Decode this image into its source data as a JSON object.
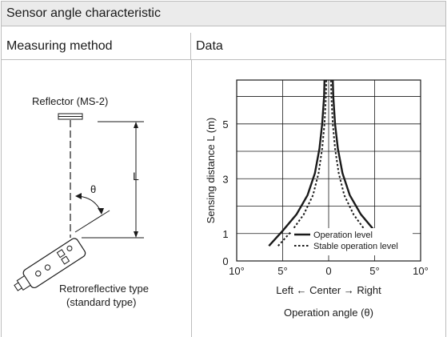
{
  "title": "Sensor angle characteristic",
  "columns": {
    "method": "Measuring method",
    "data": "Data"
  },
  "diagram": {
    "reflector_label": "Reflector (MS-2)",
    "distance_label": "L",
    "angle_label": "θ",
    "sensor_label_line1": "Retroreflective type",
    "sensor_label_line2": "(standard type)"
  },
  "chart_data": {
    "type": "line",
    "ylabel": "Sensing distance L (m)",
    "xlabel": "Operation angle (θ)",
    "x_direction_label": "Left ← Center → Right",
    "x_ticks": [
      "10°",
      "5°",
      "0",
      "5°",
      "10°"
    ],
    "y_ticks": [
      "0",
      "1",
      "3",
      "5"
    ],
    "xlim": [
      -10,
      10
    ],
    "ylim": [
      0,
      6.6
    ],
    "series": [
      {
        "name": "Operation level",
        "style": "solid",
        "left": [
          [
            -6.5,
            0.55
          ],
          [
            -5.0,
            1.1
          ],
          [
            -3.5,
            1.7
          ],
          [
            -2.3,
            2.4
          ],
          [
            -1.5,
            3.2
          ],
          [
            -1.0,
            4.1
          ],
          [
            -0.7,
            5.0
          ],
          [
            -0.5,
            6.0
          ],
          [
            -0.45,
            6.6
          ]
        ],
        "right": [
          [
            6.5,
            0.55
          ],
          [
            5.0,
            1.1
          ],
          [
            3.5,
            1.7
          ],
          [
            2.3,
            2.4
          ],
          [
            1.5,
            3.2
          ],
          [
            1.0,
            4.1
          ],
          [
            0.7,
            5.0
          ],
          [
            0.5,
            6.0
          ],
          [
            0.45,
            6.6
          ]
        ]
      },
      {
        "name": "Stable operation level",
        "style": "dotted",
        "left": [
          [
            -5.5,
            0.55
          ],
          [
            -4.0,
            1.1
          ],
          [
            -2.7,
            1.7
          ],
          [
            -1.7,
            2.4
          ],
          [
            -1.1,
            3.2
          ],
          [
            -0.7,
            4.1
          ],
          [
            -0.45,
            5.0
          ],
          [
            -0.3,
            6.0
          ],
          [
            -0.25,
            6.6
          ]
        ],
        "right": [
          [
            5.5,
            0.55
          ],
          [
            4.0,
            1.1
          ],
          [
            2.7,
            1.7
          ],
          [
            1.7,
            2.4
          ],
          [
            1.1,
            3.2
          ],
          [
            0.7,
            4.1
          ],
          [
            0.45,
            5.0
          ],
          [
            0.3,
            6.0
          ],
          [
            0.25,
            6.6
          ]
        ]
      }
    ],
    "legend_position": "bottom-right",
    "grid": true
  }
}
